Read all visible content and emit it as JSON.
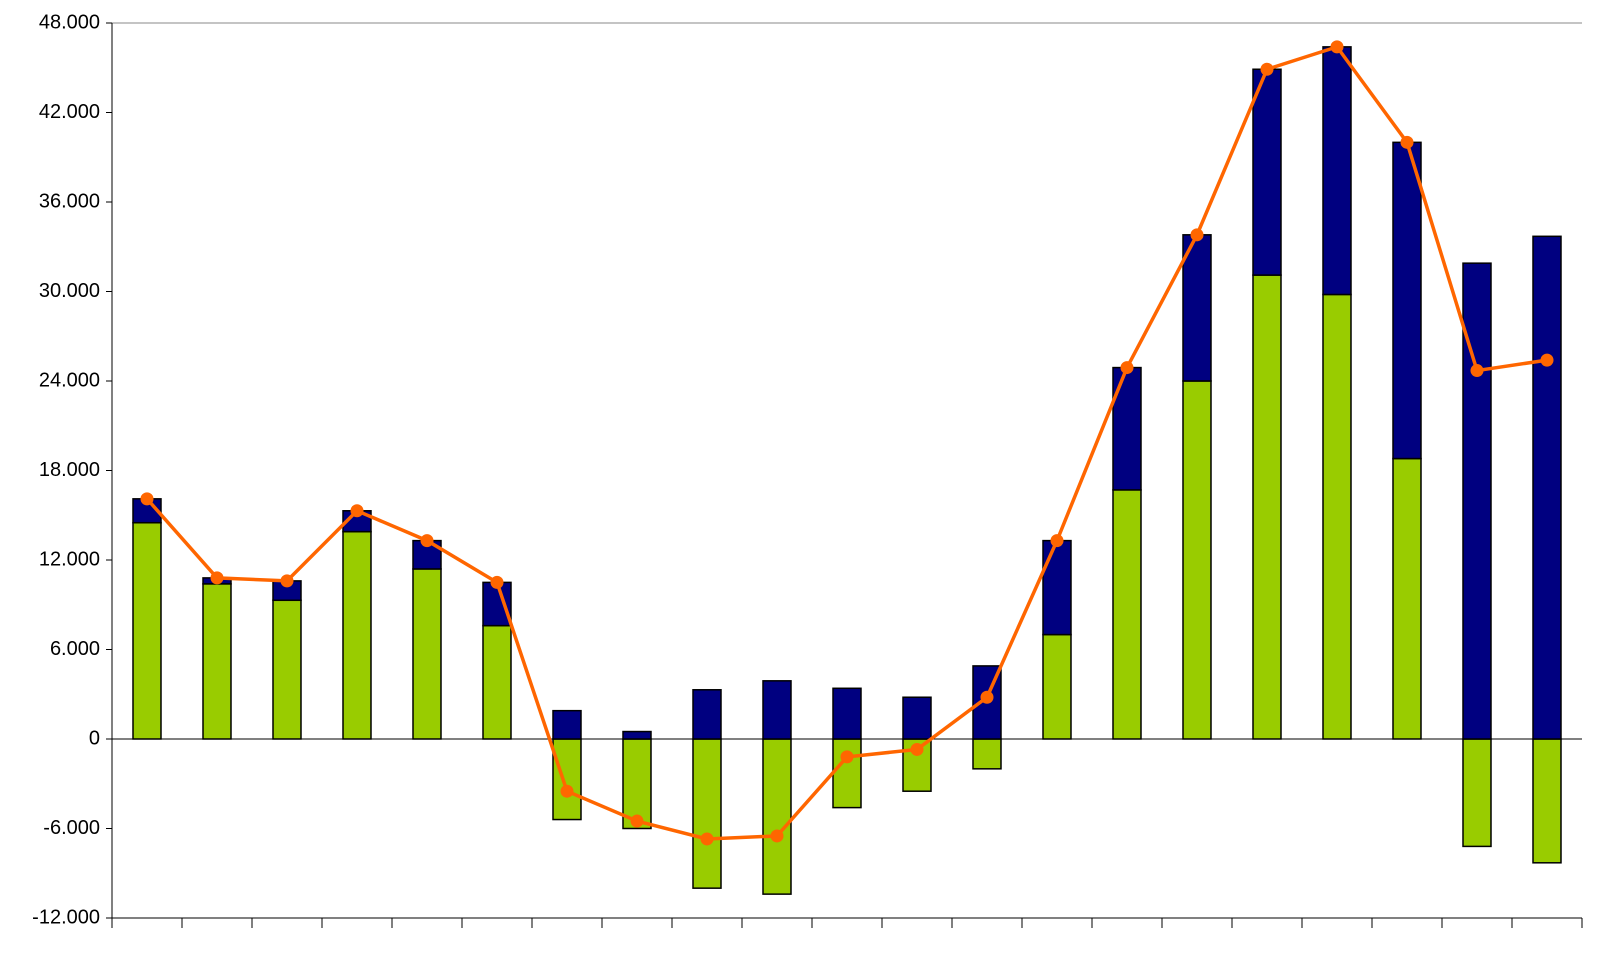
{
  "chart_data": {
    "type": "bar",
    "stacked": true,
    "categories": [
      null,
      null,
      null,
      null,
      null,
      null,
      null,
      null,
      null,
      null,
      null,
      null,
      null,
      null,
      null,
      null,
      null,
      null,
      null,
      null,
      null
    ],
    "series": [
      {
        "color": "#99cc00",
        "values": [
          14500,
          10400,
          9300,
          13900,
          11400,
          7600,
          -5400,
          -6000,
          -10000,
          -10400,
          -4600,
          -3500,
          -2000,
          7000,
          16700,
          24000,
          31100,
          29800,
          18800,
          -7200,
          -8300
        ]
      },
      {
        "color": "#000080",
        "values": [
          1600,
          400,
          1300,
          1400,
          1900,
          2900,
          1900,
          500,
          3300,
          3900,
          3400,
          2800,
          4900,
          6300,
          8200,
          9800,
          13800,
          16600,
          21200,
          31900,
          33700
        ]
      },
      {
        "type": "line",
        "color": "#ff6600",
        "values": [
          16100,
          10800,
          10600,
          15300,
          13300,
          10500,
          -3500,
          -5500,
          -6700,
          -6500,
          -1200,
          -700,
          2800,
          13300,
          24900,
          33800,
          44900,
          46400,
          40000,
          24700,
          25400
        ]
      }
    ],
    "ylim": [
      -12000,
      48000
    ],
    "yticks": [
      {
        "value": -12000,
        "label": "-12.000"
      },
      {
        "value": -6000,
        "label": "-6.000"
      },
      0,
      {
        "value": 6000,
        "label": "6.000"
      },
      {
        "value": 12000,
        "label": "12.000"
      },
      {
        "value": 18000,
        "label": "18.000"
      },
      {
        "value": 24000,
        "label": "24.000"
      },
      {
        "value": 30000,
        "label": "30.000"
      },
      {
        "value": 36000,
        "label": "36.000"
      },
      {
        "value": 42000,
        "label": "42.000"
      },
      {
        "value": 48000,
        "label": "48.000"
      }
    ],
    "grid": false
  }
}
